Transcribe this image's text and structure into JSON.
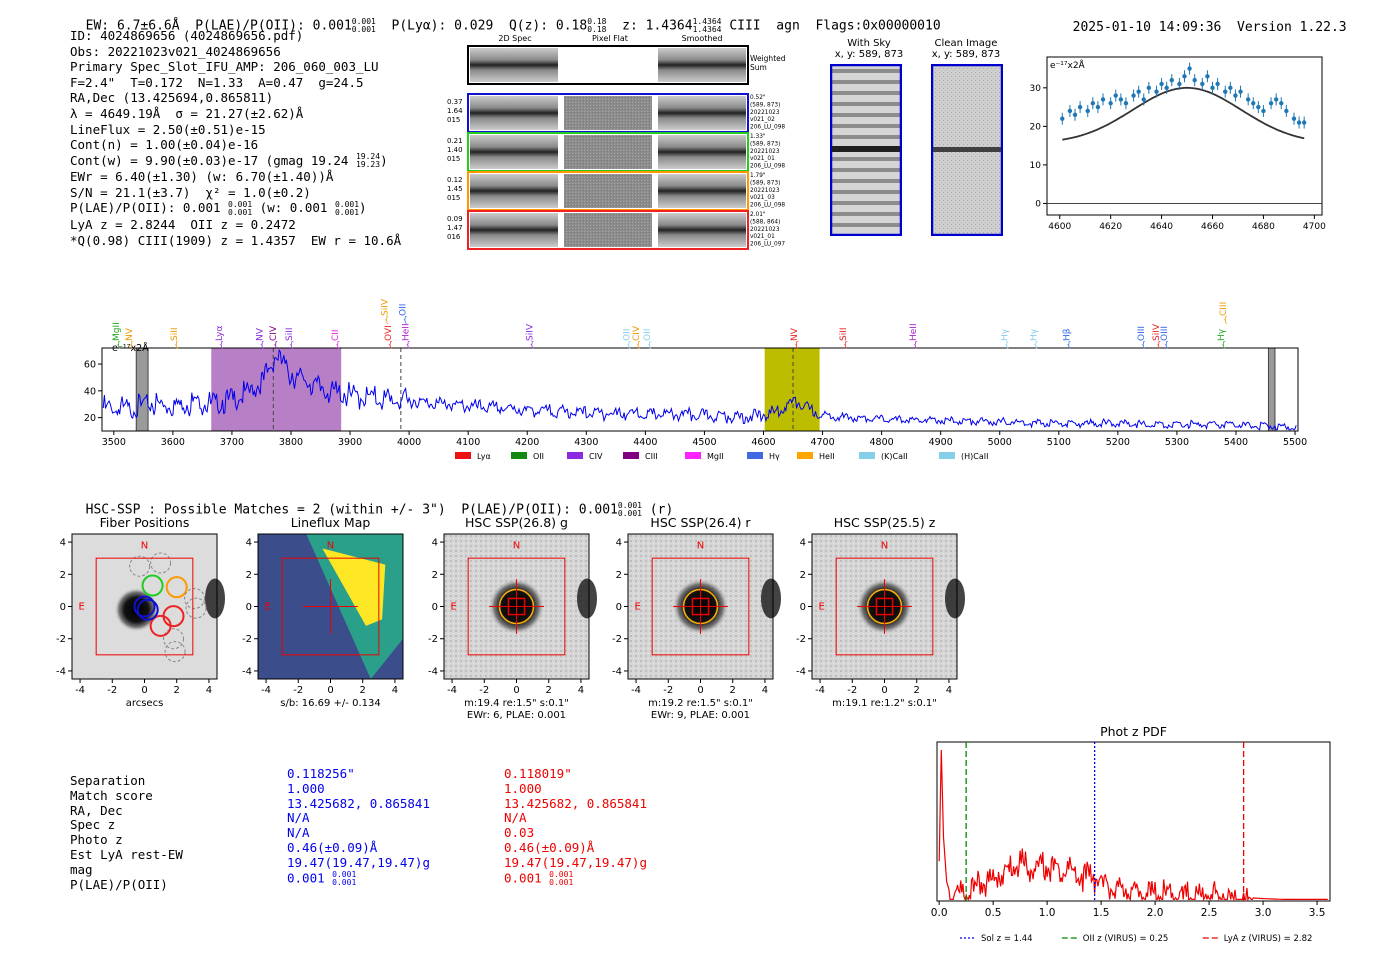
{
  "header": {
    "ew": "EW: 6.7±6.6Å",
    "plae_label": "P(LAE)/P(OII): 0.001",
    "plae_hi": "0.001",
    "plae_lo": "0.001",
    "plya": "P(Lyα): 0.029",
    "qz_label": "Q(z): 0.18",
    "qz_hi": "0.18",
    "qz_lo": "0.18",
    "z_label": "z: 1.4364",
    "z_hi": "1.4364",
    "z_lo": "1.4364",
    "z_line": "CIII",
    "agn": "agn",
    "flags": "Flags:0x00000010",
    "datetime": "2025-01-10 14:09:36",
    "version": "Version 1.22.3"
  },
  "info": {
    "id": "ID: 4024869656 (4024869656.pdf)",
    "obs": "Obs: 20221023v021_4024869656",
    "primary": "Primary Spec_Slot_IFU_AMP: 206_060_003_LU",
    "fit": "F=2.4\"  T=0.172  N=1.33  A=0.47  g=24.5",
    "radec": "RA,Dec (13.425694,0.865811)",
    "lambda": "λ = 4649.19Å  σ = 21.27(±2.62)Å",
    "lineflux": "LineFlux = 2.50(±0.51)e-15",
    "contn": "Cont(n) = 1.00(±0.04)e-16",
    "contw_pre": "Cont(w) = 9.90(±0.03)e-17 (gmag 19.24",
    "contw_hi": "19.24",
    "contw_lo": "19.23",
    "contw_post": ")",
    "ewr": "EWr = 6.40(±1.30) (w: 6.70(±1.40))Å",
    "sn": "S/N = 21.1(±3.7)  χ² = 1.0(±0.2)",
    "plae_pre": "P(LAE)/P(OII): 0.001",
    "plae_hi": "0.001",
    "plae_lo": "0.001",
    "plae_mid": " (w: 0.001",
    "plae_w_hi": "0.001",
    "plae_w_lo": "0.001",
    "plae_post": ")",
    "lya": "LyA z = 2.8244  OII z = 0.2472",
    "qline": "*Q(0.98) CIII(1909) z = 1.4357  EW r = 10.6Å"
  },
  "spec2d": {
    "col_titles": [
      "2D Spec",
      "Pixel Flat",
      "Smoothed"
    ],
    "weighted": [
      "Weighted",
      "Sum"
    ],
    "rows": [
      {
        "left": [
          "0.37",
          "1.64",
          "015"
        ],
        "right": [
          "0.52\"",
          "(589, 873)",
          "20221023",
          "v021_02",
          "206_LU_098"
        ],
        "color": "#1010d0"
      },
      {
        "left": [
          "0.21",
          "1.40",
          "015"
        ],
        "right": [
          "1.33\"",
          "(589, 873)",
          "20221023",
          "v021_01",
          "206_LU_098"
        ],
        "color": "#22cc22"
      },
      {
        "left": [
          "0.12",
          "1.45",
          "015"
        ],
        "right": [
          "1.79\"",
          "(589, 873)",
          "20221023",
          "v021_03",
          "206_LU_098"
        ],
        "color": "#ff9900"
      },
      {
        "left": [
          "0.09",
          "1.47",
          "016"
        ],
        "right": [
          "2.01\"",
          "(588, 864)",
          "20221023",
          "v021_01",
          "206_LU_097"
        ],
        "color": "#ee2222"
      }
    ]
  },
  "withsky": {
    "title": "With Sky",
    "coords": "x, y: 589, 873"
  },
  "cleanimage": {
    "title": "Clean Image",
    "coords": "x, y: 589, 873"
  },
  "zoom_chart": {
    "type": "scatter",
    "unit_label": "e⁻¹⁷x2Å",
    "xlim": [
      4595,
      4703
    ],
    "ylim": [
      -3,
      38
    ],
    "xticks": [
      "4600",
      "4620",
      "4640",
      "4660",
      "4680",
      "4700"
    ],
    "xtick_values": [
      4600,
      4620,
      4640,
      4660,
      4680,
      4700
    ],
    "yticks": [
      "0",
      "10",
      "20",
      "30"
    ],
    "ytick_values": [
      0,
      10,
      20,
      30
    ],
    "x": [
      4601,
      4604,
      4606,
      4608,
      4611,
      4613,
      4615,
      4617,
      4620,
      4622,
      4624,
      4626,
      4629,
      4631,
      4633,
      4635,
      4638,
      4640,
      4642,
      4644,
      4647,
      4649,
      4651,
      4653,
      4656,
      4658,
      4660,
      4662,
      4665,
      4667,
      4669,
      4671,
      4674,
      4676,
      4678,
      4680,
      4683,
      4685,
      4687,
      4689,
      4692,
      4694,
      4696
    ],
    "y": [
      22,
      24,
      23,
      25,
      24,
      26,
      25,
      27,
      26,
      28,
      27,
      26,
      28,
      29,
      27,
      30,
      29,
      31,
      30,
      32,
      31,
      33,
      35,
      32,
      31,
      33,
      30,
      31,
      29,
      30,
      28,
      29,
      27,
      26,
      25,
      24,
      26,
      27,
      26,
      24,
      22,
      21,
      21
    ],
    "fit_center": 4650,
    "fit_sigma": 21.27,
    "fit_base": 15.5,
    "fit_amp": 14.5
  },
  "full_spectrum": {
    "type": "line",
    "unit_label": "e⁻¹⁷x2Å",
    "xlim": [
      3480,
      5505
    ],
    "ylim": [
      10,
      72
    ],
    "xticks": [
      "3500",
      "3600",
      "3700",
      "3800",
      "3900",
      "4000",
      "4100",
      "4200",
      "4300",
      "4400",
      "4500",
      "4600",
      "4700",
      "4800",
      "4900",
      "5000",
      "5100",
      "5200",
      "5300",
      "5400",
      "5500"
    ],
    "xtick_values": [
      3500,
      3600,
      3700,
      3800,
      3900,
      4000,
      4100,
      4200,
      4300,
      4400,
      4500,
      4600,
      4700,
      4800,
      4900,
      5000,
      5100,
      5200,
      5300,
      5400,
      5500
    ],
    "yticks": [
      "20",
      "40",
      "60"
    ],
    "ytick_values": [
      20,
      40,
      60
    ],
    "anchors_x": [
      3480,
      3520,
      3560,
      3600,
      3640,
      3670,
      3690,
      3710,
      3730,
      3750,
      3765,
      3775,
      3785,
      3800,
      3830,
      3860,
      3900,
      3950,
      4000,
      4100,
      4200,
      4300,
      4400,
      4500,
      4560,
      4600,
      4630,
      4650,
      4670,
      4700,
      4750,
      4800,
      4900,
      5000,
      5100,
      5200,
      5300,
      5400,
      5460,
      5505
    ],
    "anchors_y": [
      28,
      27,
      31,
      30,
      33,
      31,
      33,
      36,
      40,
      47,
      58,
      68,
      62,
      53,
      47,
      41,
      37,
      35,
      33,
      29,
      26,
      24,
      23,
      22,
      21,
      22,
      26,
      33,
      28,
      22,
      20,
      19,
      18,
      17,
      16,
      16,
      15,
      15,
      14,
      13
    ],
    "magenta_band": [
      3665,
      3885
    ],
    "olive_band": [
      4602,
      4695
    ],
    "gray_bars": [
      3538,
      3558,
      5455,
      5466
    ],
    "dashed_lines": [
      3770,
      3986,
      4650
    ],
    "line_marks": [
      {
        "label": "MgII",
        "x": 3509,
        "color": "#22aa22",
        "tier": 1
      },
      {
        "label": "NV",
        "x": 3531,
        "color": "#ee9900",
        "tier": 1
      },
      {
        "label": "SiII",
        "x": 3607,
        "color": "#ee9900",
        "tier": 1
      },
      {
        "label": "Lyα",
        "x": 3683,
        "color": "#8a2be2",
        "tier": 1
      },
      {
        "label": "NV",
        "x": 3752,
        "color": "#8a2be2",
        "tier": 1
      },
      {
        "label": "CIV",
        "x": 3775,
        "color": "#800080",
        "tier": 1
      },
      {
        "label": "SiII",
        "x": 3802,
        "color": "#8a2be2",
        "tier": 1
      },
      {
        "label": "CII",
        "x": 3880,
        "color": "#dd22dd",
        "tier": 1
      },
      {
        "label": "OVI",
        "x": 3969,
        "color": "#ee2222",
        "tier": 1
      },
      {
        "label": "HeII",
        "x": 3999,
        "color": "#aa22cc",
        "tier": 1
      },
      {
        "label": "SiIV",
        "x": 3963,
        "color": "#ee9900",
        "tier": 0
      },
      {
        "label": "OII",
        "x": 3994,
        "color": "#3366ee",
        "tier": 0
      },
      {
        "label": "SiIV",
        "x": 4209,
        "color": "#8a2be2",
        "tier": 1
      },
      {
        "label": "OII",
        "x": 4373,
        "color": "#88ccee",
        "tier": 1
      },
      {
        "label": "CIV",
        "x": 4389,
        "color": "#ee9900",
        "tier": 1
      },
      {
        "label": "OII",
        "x": 4408,
        "color": "#88ccee",
        "tier": 1
      },
      {
        "label": "NV",
        "x": 4657,
        "color": "#ee2222",
        "tier": 1
      },
      {
        "label": "SiII",
        "x": 4740,
        "color": "#ee2222",
        "tier": 1
      },
      {
        "label": "HeII",
        "x": 4858,
        "color": "#aa22cc",
        "tier": 1
      },
      {
        "label": "Hγ",
        "x": 5013,
        "color": "#88ccee",
        "tier": 1
      },
      {
        "label": "Hγ",
        "x": 5062,
        "color": "#88ccee",
        "tier": 1
      },
      {
        "label": "Hβ",
        "x": 5118,
        "color": "#3366ee",
        "tier": 1
      },
      {
        "label": "OIII",
        "x": 5244,
        "color": "#3366ee",
        "tier": 1
      },
      {
        "label": "SiIV",
        "x": 5270,
        "color": "#ee2222",
        "tier": 1
      },
      {
        "label": "OIII",
        "x": 5283,
        "color": "#3366ee",
        "tier": 1
      },
      {
        "label": "Hγ",
        "x": 5380,
        "color": "#22aa22",
        "tier": 1
      },
      {
        "label": "CIII",
        "x": 5383,
        "color": "#ee9900",
        "tier": 0
      }
    ]
  },
  "legend": [
    {
      "label": "Lyα",
      "color": "#ee1111"
    },
    {
      "label": "OII",
      "color": "#118811"
    },
    {
      "label": "CIV",
      "color": "#8a2be2"
    },
    {
      "label": "CIII",
      "color": "#800080"
    },
    {
      "label": "MgII",
      "color": "#ff22ff"
    },
    {
      "label": "Hγ",
      "color": "#4169e1"
    },
    {
      "label": "HeII",
      "color": "#ffa500"
    },
    {
      "label": "(K)CaII",
      "color": "#87ceeb"
    },
    {
      "label": "(H)CaII",
      "color": "#87ceeb"
    }
  ],
  "hsc": {
    "line_pre": "HSC-SSP : Possible Matches = 2 (within +/- 3\")  P(LAE)/P(OII): 0.001",
    "hi": "0.001",
    "lo": "0.001",
    "post": " (r)"
  },
  "cutouts": [
    {
      "title": "Fiber Positions",
      "cap1": "arcsecs",
      "cap2": ""
    },
    {
      "title": "Lineflux Map",
      "cap1": "s/b: 16.69 +/- 0.134",
      "cap2": ""
    },
    {
      "title": "HSC SSP(26.8) g",
      "cap1": "m:19.4  re:1.5\"  s:0.1\"",
      "cap2": "EWr: 6, PLAE: 0.001"
    },
    {
      "title": "HSC SSP(26.4) r",
      "cap1": "m:19.2  re:1.5\"  s:0.1\"",
      "cap2": "EWr: 9, PLAE: 0.001"
    },
    {
      "title": "HSC SSP(25.5) z",
      "cap1": "m:19.1  re:1.2\"  s:0.1\"",
      "cap2": ""
    }
  ],
  "cutout_axis": {
    "ticks": [
      "-4",
      "-2",
      "0",
      "2",
      "4"
    ],
    "tick_values": [
      -4,
      -2,
      0,
      2,
      4
    ],
    "lim": [
      -4.5,
      4.5
    ],
    "north": "N",
    "east": "E"
  },
  "table": {
    "labels": [
      "Separation",
      "Match score",
      "RA, Dec",
      "Spec z",
      "Photo z",
      "Est LyA rest-EW",
      "mag",
      "P(LAE)/P(OII)"
    ],
    "col1": [
      "0.118256\"",
      "1.000",
      "13.425682, 0.865841",
      "N/A",
      "N/A",
      "0.46(±0.09)Å",
      "19.47(19.47,19.47)g",
      "0.001"
    ],
    "col1_hi": "0.001",
    "col1_lo": "0.001",
    "col2": [
      "0.118019\"",
      "1.000",
      "13.425682, 0.865841",
      "N/A",
      "0.03",
      "0.46(±0.09)Å",
      "19.47(19.47,19.47)g",
      "0.001"
    ],
    "col2_hi": "0.001",
    "col2_lo": "0.001",
    "col1_color": "#0000ee",
    "col2_color": "#ee0000"
  },
  "photoz_chart": {
    "type": "line",
    "title": "Phot z PDF",
    "xlim": [
      -0.02,
      3.62
    ],
    "ylim": [
      0,
      1
    ],
    "xticks": [
      "0.0",
      "0.5",
      "1.0",
      "1.5",
      "2.0",
      "2.5",
      "3.0",
      "3.5"
    ],
    "xtick_values": [
      0,
      0.5,
      1,
      1.5,
      2,
      2.5,
      3,
      3.5
    ],
    "vlines": [
      {
        "label": "Sol z = 1.44",
        "x": 1.44,
        "color": "#0000ee",
        "dash": "2,2"
      },
      {
        "label": "OII z (VIRUS) = 0.25",
        "x": 0.25,
        "color": "#008800",
        "dash": "6,3"
      },
      {
        "label": "LyA z (VIRUS) = 2.82",
        "x": 2.82,
        "color": "#ee0000",
        "dash": "6,3"
      }
    ],
    "anchors_x": [
      0.0,
      0.02,
      0.04,
      0.07,
      0.1,
      0.2,
      0.3,
      0.4,
      0.5,
      0.6,
      0.7,
      0.75,
      0.8,
      0.9,
      1.0,
      1.1,
      1.2,
      1.3,
      1.4,
      1.5,
      1.6,
      1.7,
      1.8,
      2.0,
      2.2,
      2.4,
      2.5,
      2.7,
      2.9,
      3.0,
      3.2,
      3.4,
      3.6
    ],
    "anchors_y": [
      0.25,
      0.95,
      0.4,
      0.12,
      0.05,
      0.08,
      0.1,
      0.14,
      0.18,
      0.22,
      0.27,
      0.3,
      0.26,
      0.24,
      0.26,
      0.22,
      0.23,
      0.19,
      0.2,
      0.15,
      0.12,
      0.1,
      0.09,
      0.08,
      0.07,
      0.06,
      0.07,
      0.04,
      0.02,
      0.015,
      0.01,
      0.01,
      0.01
    ]
  }
}
